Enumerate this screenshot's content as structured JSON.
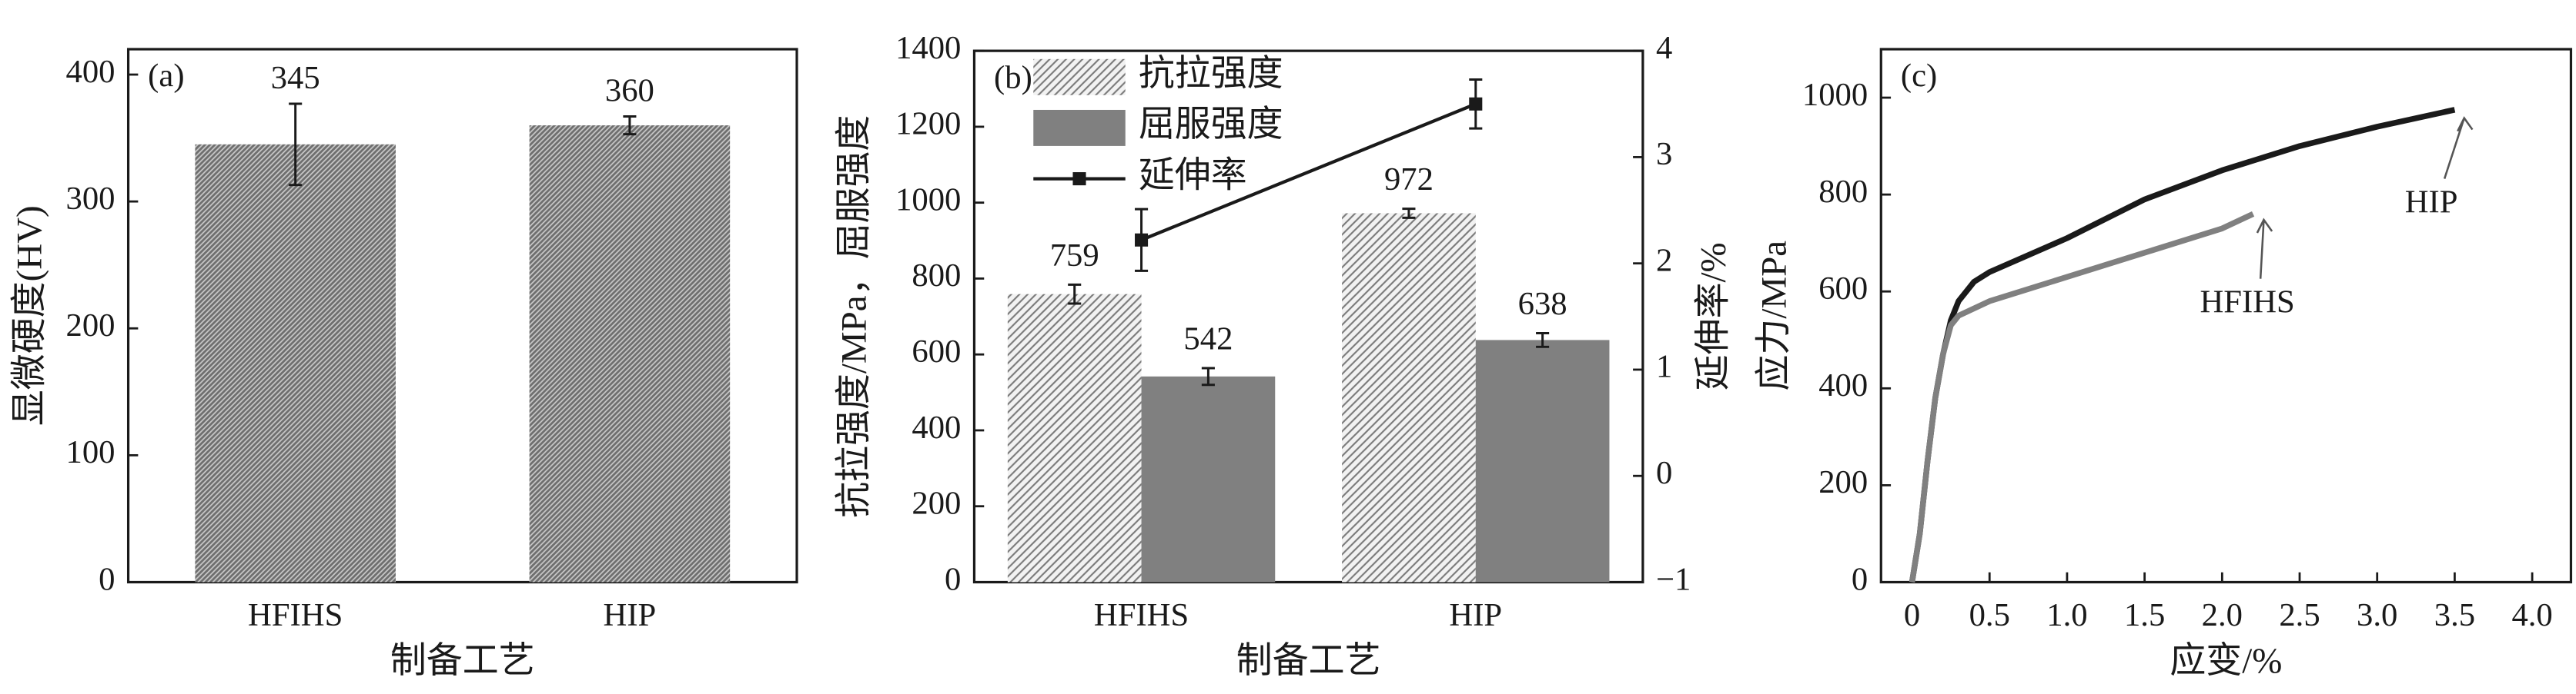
{
  "chart_data": [
    {
      "type": "bar",
      "annotation": "(a)",
      "x_label": "制备工艺",
      "y_label": "显微硬度(HV)",
      "categories": [
        "HFIHS",
        "HIP"
      ],
      "values": [
        345,
        360
      ],
      "errors": [
        32,
        7
      ],
      "color": "#6e6e6e",
      "hatch": true,
      "ylim": [
        0,
        420
      ],
      "yticks": [
        0,
        100,
        200,
        300,
        400
      ],
      "grid": false
    },
    {
      "type": "combo",
      "annotation": "(b)",
      "x_label": "制备工艺",
      "y_label": "抗拉强度/MPa，屈服强度",
      "y2_label": "延伸率/%",
      "categories": [
        "HFIHS",
        "HIP"
      ],
      "series": [
        {
          "name": "抗拉强度",
          "kind": "bar",
          "hatch": true,
          "color": "#7a7a7a",
          "values": [
            759,
            972
          ],
          "errors": [
            25,
            12
          ]
        },
        {
          "name": "屈服强度",
          "kind": "bar",
          "hatch": false,
          "color": "#808080",
          "values": [
            542,
            638
          ],
          "errors": [
            22,
            18
          ]
        },
        {
          "name": "延伸率",
          "kind": "line",
          "axis": "y2",
          "color": "#1a1a1a",
          "values": [
            2.22,
            3.5
          ],
          "errors": [
            0.29,
            0.23
          ]
        }
      ],
      "ylim": [
        0,
        1400
      ],
      "yticks": [
        0,
        200,
        400,
        600,
        800,
        1000,
        1200,
        1400
      ],
      "y2lim": [
        -1,
        4
      ],
      "y2ticks": [
        {
          "value": -1,
          "label": "−1"
        },
        0,
        1,
        2,
        3,
        4
      ],
      "legend": "upper-left",
      "grid": false
    },
    {
      "type": "line",
      "annotation": "(c)",
      "x_label": "应变/%",
      "y_label": "应力/MPa",
      "series": [
        {
          "name": "HIP",
          "color": "#1a1a1a",
          "x": [
            0,
            0.05,
            0.1,
            0.15,
            0.2,
            0.25,
            0.3,
            0.4,
            0.5,
            1.0,
            1.5,
            2.0,
            2.5,
            3.0,
            3.5
          ],
          "values": [
            0,
            100,
            250,
            380,
            470,
            540,
            580,
            620,
            640,
            710,
            790,
            850,
            900,
            940,
            975
          ]
        },
        {
          "name": "HFIHS",
          "color": "#808080",
          "x": [
            0,
            0.05,
            0.1,
            0.15,
            0.2,
            0.25,
            0.3,
            0.5,
            1.0,
            1.5,
            2.0,
            2.2
          ],
          "values": [
            0,
            100,
            250,
            380,
            470,
            530,
            550,
            580,
            630,
            680,
            730,
            760
          ]
        }
      ],
      "xlim": [
        -0.2,
        4.25
      ],
      "xticks": [
        0,
        0.5,
        {
          "value": 1,
          "label": "1.0"
        },
        1.5,
        {
          "value": 2,
          "label": "2.0"
        },
        2.5,
        {
          "value": 3,
          "label": "3.0"
        },
        3.5,
        {
          "value": 4,
          "label": "4.0"
        }
      ],
      "ylim": [
        0,
        1100
      ],
      "yticks": [
        0,
        200,
        400,
        600,
        800,
        1000
      ],
      "grid": false
    }
  ]
}
